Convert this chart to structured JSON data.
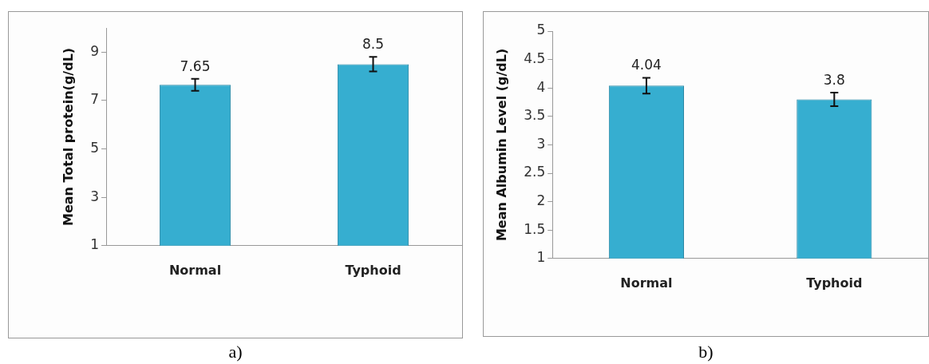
{
  "chart_data": [
    {
      "type": "bar",
      "ylabel": "Mean Total protein(g/dL)",
      "categories": [
        "Normal",
        "Typhoid"
      ],
      "values": [
        7.65,
        8.5
      ],
      "errors": [
        0.25,
        0.3
      ],
      "color": "#36aed0",
      "ylim": [
        1,
        10
      ],
      "yticks": [
        1,
        3,
        5,
        7,
        9
      ],
      "data_labels": true,
      "annotations": [
        "a)"
      ]
    },
    {
      "type": "bar",
      "ylabel": "Mean Albumin Level (g/dL)",
      "categories": [
        "Normal",
        "Typhoid"
      ],
      "values": [
        4.04,
        3.8
      ],
      "errors": [
        0.14,
        0.12
      ],
      "color": "#36aed0",
      "ylim": [
        1,
        5
      ],
      "yticks": [
        1,
        1.5,
        2,
        2.5,
        3,
        3.5,
        4,
        4.5,
        5
      ],
      "data_labels": true,
      "annotations": [
        "b)"
      ]
    }
  ]
}
